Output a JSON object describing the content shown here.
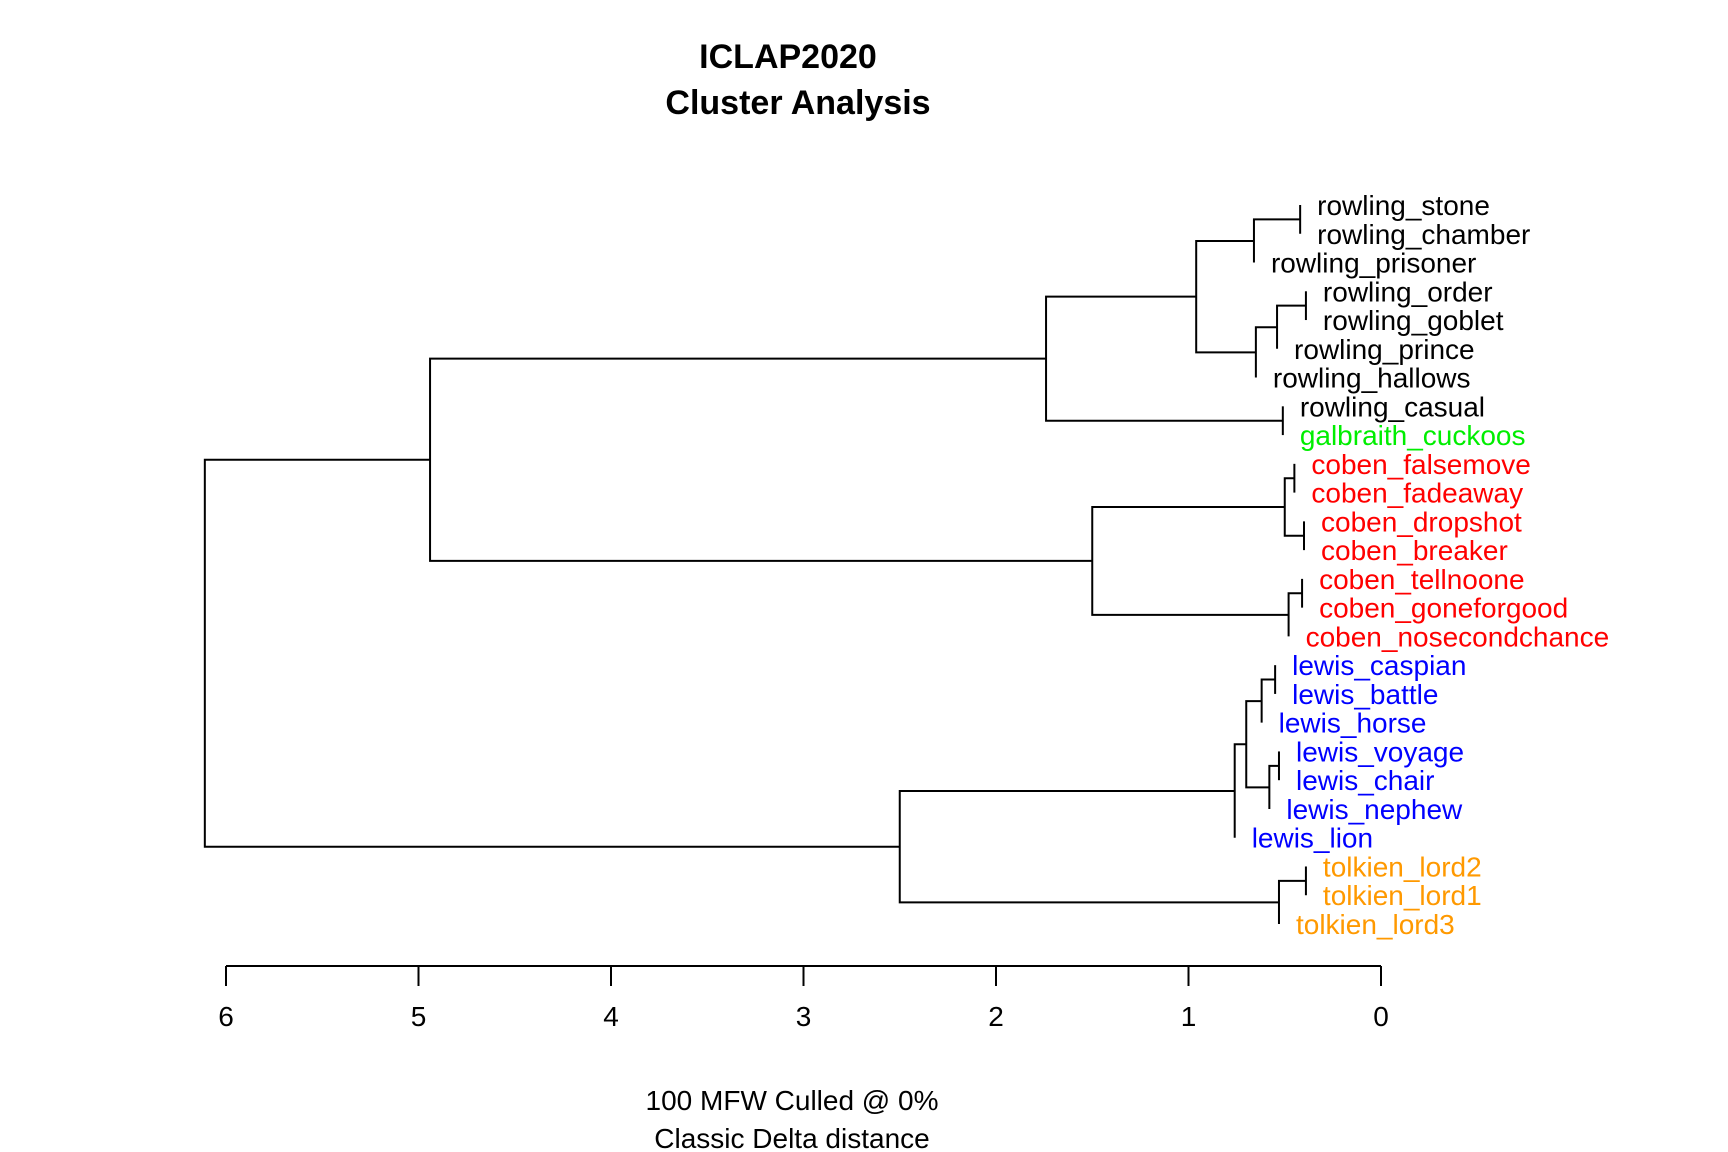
{
  "chart_data": {
    "type": "dendrogram",
    "title": "ICLAP2020",
    "subtitle": "Cluster Analysis",
    "xlabel_line1": "100 MFW  Culled @ 0%",
    "xlabel_line2": "Classic Delta distance",
    "orientation": "horizontal",
    "xlim": [
      6,
      0
    ],
    "ticks": [
      "6",
      "5",
      "4",
      "3",
      "2",
      "1",
      "0"
    ],
    "tick_values": [
      6,
      5,
      4,
      3,
      2,
      1,
      0
    ],
    "colors": {
      "rowling": "#000000",
      "galbraith": "#00ee00",
      "coben": "#ff0000",
      "lewis": "#0000ff",
      "tolkien": "#ff9900"
    },
    "leaves": [
      {
        "label": "rowling_stone",
        "height": 0.42,
        "color": "#000000"
      },
      {
        "label": "rowling_chamber",
        "height": 0.42,
        "color": "#000000"
      },
      {
        "label": "rowling_prisoner",
        "height": 0.66,
        "color": "#000000"
      },
      {
        "label": "rowling_order",
        "height": 0.39,
        "color": "#000000"
      },
      {
        "label": "rowling_goblet",
        "height": 0.39,
        "color": "#000000"
      },
      {
        "label": "rowling_prince",
        "height": 0.54,
        "color": "#000000"
      },
      {
        "label": "rowling_hallows",
        "height": 0.65,
        "color": "#000000"
      },
      {
        "label": "rowling_casual",
        "height": 0.51,
        "color": "#000000"
      },
      {
        "label": "galbraith_cuckoos",
        "height": 0.51,
        "color": "#00ee00"
      },
      {
        "label": "coben_falsemove",
        "height": 0.45,
        "color": "#ff0000"
      },
      {
        "label": "coben_fadeaway",
        "height": 0.45,
        "color": "#ff0000"
      },
      {
        "label": "coben_dropshot",
        "height": 0.4,
        "color": "#ff0000"
      },
      {
        "label": "coben_breaker",
        "height": 0.4,
        "color": "#ff0000"
      },
      {
        "label": "coben_tellnoone",
        "height": 0.41,
        "color": "#ff0000"
      },
      {
        "label": "coben_goneforgood",
        "height": 0.41,
        "color": "#ff0000"
      },
      {
        "label": "coben_nosecondchance",
        "height": 0.48,
        "color": "#ff0000"
      },
      {
        "label": "lewis_caspian",
        "height": 0.55,
        "color": "#0000ff"
      },
      {
        "label": "lewis_battle",
        "height": 0.55,
        "color": "#0000ff"
      },
      {
        "label": "lewis_horse",
        "height": 0.62,
        "color": "#0000ff"
      },
      {
        "label": "lewis_voyage",
        "height": 0.53,
        "color": "#0000ff"
      },
      {
        "label": "lewis_chair",
        "height": 0.53,
        "color": "#0000ff"
      },
      {
        "label": "lewis_nephew",
        "height": 0.58,
        "color": "#0000ff"
      },
      {
        "label": "lewis_lion",
        "height": 0.76,
        "color": "#0000ff"
      },
      {
        "label": "tolkien_lord2",
        "height": 0.39,
        "color": "#ff9900"
      },
      {
        "label": "tolkien_lord1",
        "height": 0.39,
        "color": "#ff9900"
      },
      {
        "label": "tolkien_lord3",
        "height": 0.53,
        "color": "#ff9900"
      }
    ],
    "merges": [
      {
        "height": 0.42,
        "children": [
          "L0",
          "L1"
        ]
      },
      {
        "height": 0.66,
        "children": [
          "M0",
          "L2"
        ]
      },
      {
        "height": 0.39,
        "children": [
          "L3",
          "L4"
        ]
      },
      {
        "height": 0.54,
        "children": [
          "M2",
          "L5"
        ]
      },
      {
        "height": 0.65,
        "children": [
          "M3",
          "L6"
        ]
      },
      {
        "height": 0.96,
        "children": [
          "M1",
          "M4"
        ]
      },
      {
        "height": 0.51,
        "children": [
          "L7",
          "L8"
        ]
      },
      {
        "height": 1.74,
        "children": [
          "M5",
          "M6"
        ]
      },
      {
        "height": 0.45,
        "children": [
          "L9",
          "L10"
        ]
      },
      {
        "height": 0.4,
        "children": [
          "L11",
          "L12"
        ]
      },
      {
        "height": 0.5,
        "children": [
          "M8",
          "M9"
        ]
      },
      {
        "height": 0.41,
        "children": [
          "L13",
          "L14"
        ]
      },
      {
        "height": 0.48,
        "children": [
          "M11",
          "L15"
        ]
      },
      {
        "height": 1.5,
        "children": [
          "M10",
          "M12"
        ]
      },
      {
        "height": 4.94,
        "children": [
          "M7",
          "M13"
        ]
      },
      {
        "height": 0.55,
        "children": [
          "L16",
          "L17"
        ]
      },
      {
        "height": 0.62,
        "children": [
          "M15",
          "L18"
        ]
      },
      {
        "height": 0.53,
        "children": [
          "L19",
          "L20"
        ]
      },
      {
        "height": 0.58,
        "children": [
          "M17",
          "L21"
        ]
      },
      {
        "height": 0.7,
        "children": [
          "M16",
          "M18"
        ]
      },
      {
        "height": 0.76,
        "children": [
          "M19",
          "L22"
        ]
      },
      {
        "height": 0.39,
        "children": [
          "L23",
          "L24"
        ]
      },
      {
        "height": 0.53,
        "children": [
          "M21",
          "L25"
        ]
      },
      {
        "height": 2.5,
        "children": [
          "M20",
          "M22"
        ]
      },
      {
        "height": 6.11,
        "children": [
          "M14",
          "M23"
        ]
      }
    ]
  }
}
